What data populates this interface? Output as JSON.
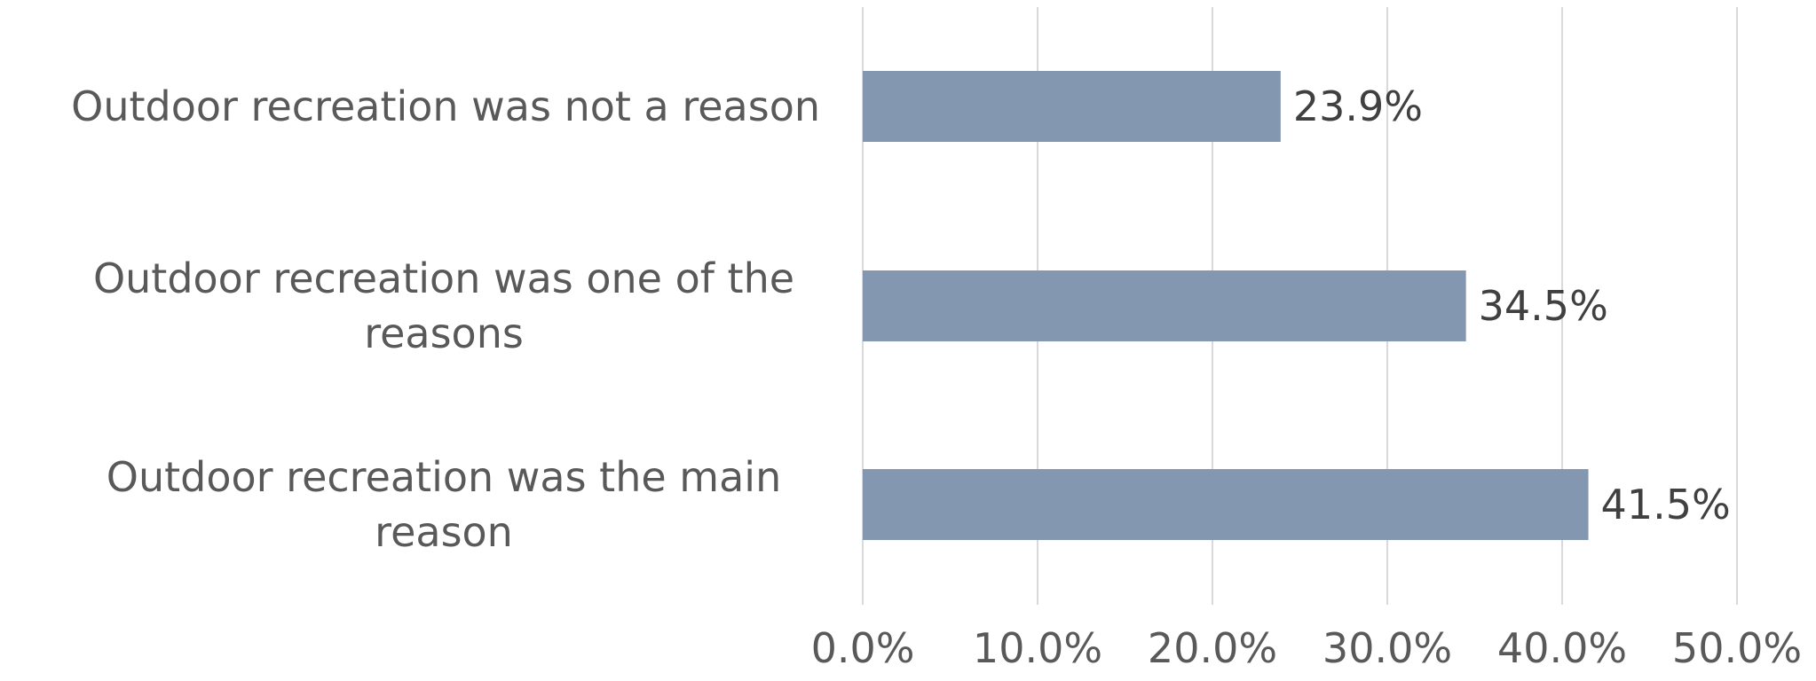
{
  "chart_data": {
    "type": "bar",
    "orientation": "horizontal",
    "categories": [
      "Outdoor recreation was not a reason",
      "Outdoor recreation was one of the reasons",
      "Outdoor recreation was the main reason"
    ],
    "values": [
      23.9,
      34.5,
      41.5
    ],
    "data_labels": [
      "23.9%",
      "34.5%",
      "41.5%"
    ],
    "xlim": [
      0,
      50
    ],
    "x_ticks": [
      0,
      10,
      20,
      30,
      40,
      50
    ],
    "x_tick_labels": [
      "0.0%",
      "10.0%",
      "20.0%",
      "30.0%",
      "40.0%",
      "50.0%"
    ],
    "grid": true,
    "legend": "none",
    "colors": {
      "bar": "#8497b0",
      "grid": "#d9d9d9",
      "label_text": "#595959",
      "value_text": "#404040"
    }
  }
}
